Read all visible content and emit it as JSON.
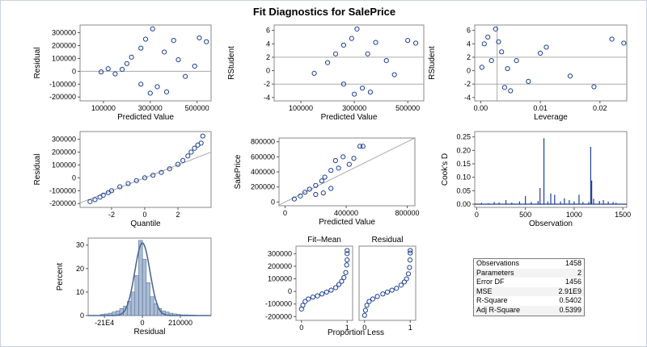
{
  "title": "Fit Diagnostics for SalePrice",
  "colors": {
    "marker": "#1c3f94",
    "bar": "#a9bcd6",
    "axis": "#888888",
    "ref": "#aaaaaa"
  },
  "chart_data": [
    {
      "type": "scatter",
      "title": "",
      "xlabel": "Predicted Value",
      "ylabel": "Residual",
      "xlim": [
        0,
        560000
      ],
      "ylim": [
        -230000,
        360000
      ],
      "xticks": [
        "100000",
        "300000",
        "500000"
      ],
      "xtick_values": [
        100000,
        300000,
        500000
      ],
      "yticks": [
        "300000",
        "200000",
        "100000",
        "0",
        "-100000",
        "-200000"
      ],
      "ytick_values": [
        300000,
        200000,
        100000,
        0,
        -100000,
        -200000
      ],
      "reference_lines": [
        0
      ],
      "points": [
        [
          150000,
          -20000
        ],
        [
          180000,
          15000
        ],
        [
          200000,
          60000
        ],
        [
          220000,
          110000
        ],
        [
          260000,
          180000
        ],
        [
          280000,
          250000
        ],
        [
          310000,
          330000
        ],
        [
          360000,
          150000
        ],
        [
          400000,
          240000
        ],
        [
          420000,
          90000
        ],
        [
          450000,
          -40000
        ],
        [
          490000,
          40000
        ],
        [
          510000,
          260000
        ],
        [
          540000,
          230000
        ],
        [
          330000,
          -120000
        ],
        [
          300000,
          -170000
        ],
        [
          260000,
          -100000
        ],
        [
          370000,
          -160000
        ],
        [
          120000,
          20000
        ],
        [
          90000,
          -5000
        ]
      ]
    },
    {
      "type": "scatter",
      "title": "",
      "xlabel": "Predicted Value",
      "ylabel": "RStudent",
      "xlim": [
        0,
        560000
      ],
      "ylim": [
        -4.5,
        6.8
      ],
      "xticks": [
        "100000",
        "300000",
        "500000"
      ],
      "xtick_values": [
        100000,
        300000,
        500000
      ],
      "yticks": [
        "6",
        "4",
        "2",
        "0",
        "-2",
        "-4"
      ],
      "ytick_values": [
        6,
        4,
        2,
        0,
        -2,
        -4
      ],
      "reference_lines": [
        2,
        -2
      ],
      "points": [
        [
          150000,
          -0.4
        ],
        [
          200000,
          1.2
        ],
        [
          230000,
          2.5
        ],
        [
          260000,
          3.8
        ],
        [
          290000,
          4.8
        ],
        [
          310000,
          6.2
        ],
        [
          350000,
          2.5
        ],
        [
          380000,
          4.2
        ],
        [
          420000,
          1.5
        ],
        [
          450000,
          -0.6
        ],
        [
          500000,
          4.5
        ],
        [
          530000,
          4.1
        ],
        [
          330000,
          -2.6
        ],
        [
          300000,
          -3.5
        ],
        [
          260000,
          -2.0
        ],
        [
          360000,
          -3.2
        ]
      ]
    },
    {
      "type": "scatter",
      "title": "",
      "xlabel": "Leverage",
      "ylabel": "RStudent",
      "xlim": [
        -0.001,
        0.0245
      ],
      "ylim": [
        -4.5,
        6.8
      ],
      "xticks": [
        "0.00",
        "0.01",
        "0.02"
      ],
      "xtick_values": [
        0.0,
        0.01,
        0.02
      ],
      "yticks": [
        "6",
        "4",
        "2",
        "0",
        "-2",
        "-4"
      ],
      "ytick_values": [
        6,
        4,
        2,
        0,
        -2,
        -4
      ],
      "reference_lines_h": [
        2,
        -2
      ],
      "reference_lines_v": [
        0.00275
      ],
      "points": [
        [
          0.0002,
          0.5
        ],
        [
          0.0006,
          4.0
        ],
        [
          0.0012,
          5.0
        ],
        [
          0.0018,
          1.5
        ],
        [
          0.0025,
          6.2
        ],
        [
          0.003,
          4.3
        ],
        [
          0.0035,
          2.8
        ],
        [
          0.004,
          -2.5
        ],
        [
          0.0045,
          0.3
        ],
        [
          0.005,
          -3.0
        ],
        [
          0.006,
          1.5
        ],
        [
          0.008,
          -1.6
        ],
        [
          0.01,
          2.6
        ],
        [
          0.011,
          3.5
        ],
        [
          0.015,
          -0.8
        ],
        [
          0.019,
          -2.4
        ],
        [
          0.022,
          4.7
        ],
        [
          0.024,
          4.1
        ]
      ]
    },
    {
      "type": "scatter",
      "title": "",
      "xlabel": "Quantile",
      "ylabel": "Residual",
      "xlim": [
        -3.9,
        4.0
      ],
      "ylim": [
        -230000,
        360000
      ],
      "xticks": [
        "-2",
        "0",
        "2"
      ],
      "xtick_values": [
        -2,
        0,
        2
      ],
      "yticks": [
        "300000",
        "200000",
        "100000",
        "0",
        "-100000",
        "-200000"
      ],
      "ytick_values": [
        300000,
        200000,
        100000,
        0,
        -100000,
        -200000
      ],
      "reference_line": {
        "slope": 50000,
        "intercept": 0
      },
      "points": [
        [
          -3.3,
          -185000
        ],
        [
          -3.0,
          -170000
        ],
        [
          -2.7,
          -150000
        ],
        [
          -2.5,
          -135000
        ],
        [
          -2.2,
          -115000
        ],
        [
          -2.0,
          -100000
        ],
        [
          -1.5,
          -70000
        ],
        [
          -1.0,
          -45000
        ],
        [
          -0.5,
          -22000
        ],
        [
          0,
          0
        ],
        [
          0.5,
          20000
        ],
        [
          1.0,
          42000
        ],
        [
          1.5,
          70000
        ],
        [
          2.0,
          105000
        ],
        [
          2.3,
          135000
        ],
        [
          2.6,
          170000
        ],
        [
          2.8,
          200000
        ],
        [
          3.0,
          230000
        ],
        [
          3.2,
          255000
        ],
        [
          3.4,
          270000
        ],
        [
          3.5,
          325000
        ]
      ]
    },
    {
      "type": "scatter",
      "title": "",
      "xlabel": "Predicted Value",
      "ylabel": "SalePrice",
      "xlim": [
        -40000,
        850000
      ],
      "ylim": [
        -50000,
        850000
      ],
      "xticks": [
        "0",
        "400000",
        "800000"
      ],
      "xtick_values": [
        0,
        400000,
        800000
      ],
      "yticks": [
        "800000",
        "600000",
        "400000",
        "200000",
        "0"
      ],
      "ytick_values": [
        800000,
        600000,
        400000,
        200000,
        0
      ],
      "reference_line": {
        "slope": 1,
        "intercept": 0
      },
      "points": [
        [
          60000,
          40000
        ],
        [
          100000,
          80000
        ],
        [
          130000,
          130000
        ],
        [
          160000,
          170000
        ],
        [
          200000,
          220000
        ],
        [
          240000,
          280000
        ],
        [
          260000,
          330000
        ],
        [
          300000,
          420000
        ],
        [
          330000,
          550000
        ],
        [
          350000,
          450000
        ],
        [
          380000,
          600000
        ],
        [
          420000,
          500000
        ],
        [
          450000,
          580000
        ],
        [
          490000,
          740000
        ],
        [
          510000,
          740000
        ],
        [
          200000,
          100000
        ],
        [
          250000,
          120000
        ],
        [
          300000,
          180000
        ]
      ]
    },
    {
      "type": "bar",
      "title": "",
      "xlabel": "Observation",
      "ylabel": "Cook's D",
      "xlim": [
        -20,
        1540
      ],
      "ylim": [
        -0.012,
        0.27
      ],
      "xticks": [
        "0",
        "500",
        "1000",
        "1500"
      ],
      "xtick_values": [
        0,
        500,
        1000,
        1500
      ],
      "yticks": [
        "0.25",
        "0.20",
        "0.15",
        "0.10",
        "0.05",
        "0.00"
      ],
      "ytick_values": [
        0.25,
        0.2,
        0.15,
        0.1,
        0.05,
        0.0
      ],
      "needles": [
        [
          50,
          0.005
        ],
        [
          120,
          0.004
        ],
        [
          180,
          0.008
        ],
        [
          230,
          0.006
        ],
        [
          300,
          0.015
        ],
        [
          360,
          0.006
        ],
        [
          440,
          0.01
        ],
        [
          500,
          0.03
        ],
        [
          560,
          0.008
        ],
        [
          630,
          0.012
        ],
        [
          650,
          0.06
        ],
        [
          690,
          0.245
        ],
        [
          730,
          0.01
        ],
        [
          760,
          0.04
        ],
        [
          800,
          0.035
        ],
        [
          860,
          0.01
        ],
        [
          900,
          0.022
        ],
        [
          950,
          0.015
        ],
        [
          1000,
          0.01
        ],
        [
          1050,
          0.035
        ],
        [
          1090,
          0.008
        ],
        [
          1150,
          0.008
        ],
        [
          1170,
          0.213
        ],
        [
          1180,
          0.088
        ],
        [
          1200,
          0.02
        ],
        [
          1260,
          0.012
        ],
        [
          1300,
          0.015
        ],
        [
          1350,
          0.01
        ],
        [
          1400,
          0.008
        ],
        [
          1430,
          0.005
        ]
      ]
    },
    {
      "type": "bar",
      "title": "",
      "xlabel": "Residual",
      "ylabel": "Percent",
      "xlim": [
        -300000,
        380000
      ],
      "ylim": [
        0,
        33
      ],
      "xticks": [
        "-21E4",
        "0",
        "210000"
      ],
      "xtick_values": [
        -210000,
        0,
        210000
      ],
      "yticks": [
        "30",
        "20",
        "10",
        "0"
      ],
      "ytick_values": [
        30,
        20,
        10,
        0
      ],
      "bin_width": 21000,
      "bins": [
        [
          -220000,
          0.5
        ],
        [
          -199000,
          0.7
        ],
        [
          -178000,
          1.0
        ],
        [
          -157000,
          1.5
        ],
        [
          -136000,
          2
        ],
        [
          -115000,
          3
        ],
        [
          -94000,
          4
        ],
        [
          -73000,
          6
        ],
        [
          -52000,
          10
        ],
        [
          -31000,
          17
        ],
        [
          -10000,
          32
        ],
        [
          11000,
          24
        ],
        [
          32000,
          14
        ],
        [
          53000,
          8
        ],
        [
          74000,
          5
        ],
        [
          95000,
          3
        ],
        [
          116000,
          2
        ],
        [
          137000,
          1.5
        ],
        [
          158000,
          1
        ],
        [
          179000,
          0.7
        ],
        [
          200000,
          0.5
        ],
        [
          221000,
          0.3
        ],
        [
          242000,
          0.3
        ],
        [
          263000,
          0.2
        ],
        [
          284000,
          0.2
        ]
      ],
      "density_peak_x": 0,
      "density_peak": 31,
      "density_sd": 42000
    },
    {
      "type": "scatter",
      "title": "Fit–Mean",
      "xlabel": "",
      "ylabel": "",
      "xlim": [
        -0.12,
        1.12
      ],
      "ylim": [
        -230000,
        360000
      ],
      "xticks": [
        "0",
        "1"
      ],
      "xtick_values": [
        0,
        1
      ],
      "yticks": [
        "300000",
        "200000",
        "100000",
        "0",
        "-100000",
        "-200000"
      ],
      "ytick_values": [
        300000,
        200000,
        100000,
        0,
        -100000,
        -200000
      ],
      "points": [
        [
          0.0,
          -140000
        ],
        [
          0.03,
          -110000
        ],
        [
          0.08,
          -80000
        ],
        [
          0.15,
          -60000
        ],
        [
          0.25,
          -45000
        ],
        [
          0.35,
          -35000
        ],
        [
          0.45,
          -20000
        ],
        [
          0.55,
          -5000
        ],
        [
          0.65,
          10000
        ],
        [
          0.75,
          30000
        ],
        [
          0.82,
          55000
        ],
        [
          0.88,
          80000
        ],
        [
          0.93,
          110000
        ],
        [
          0.97,
          150000
        ],
        [
          0.99,
          210000
        ],
        [
          1.0,
          250000
        ],
        [
          1.0,
          300000
        ],
        [
          1.0,
          325000
        ]
      ]
    },
    {
      "type": "scatter",
      "title": "Residual",
      "xlabel": "",
      "ylabel": "",
      "xlim": [
        -0.12,
        1.12
      ],
      "ylim": [
        -230000,
        360000
      ],
      "xticks": [
        "0",
        "1"
      ],
      "xtick_values": [
        0,
        1
      ],
      "yticks": [],
      "ytick_values": [],
      "points": [
        [
          0.0,
          -190000
        ],
        [
          0.02,
          -150000
        ],
        [
          0.05,
          -110000
        ],
        [
          0.1,
          -80000
        ],
        [
          0.18,
          -60000
        ],
        [
          0.28,
          -40000
        ],
        [
          0.4,
          -20000
        ],
        [
          0.5,
          -5000
        ],
        [
          0.6,
          10000
        ],
        [
          0.7,
          25000
        ],
        [
          0.8,
          50000
        ],
        [
          0.87,
          75000
        ],
        [
          0.92,
          100000
        ],
        [
          0.96,
          140000
        ],
        [
          0.985,
          190000
        ],
        [
          0.995,
          250000
        ],
        [
          1.0,
          305000
        ],
        [
          1.0,
          325000
        ]
      ]
    }
  ],
  "shared_xlabel_fitmean": "Proportion Less",
  "stats": [
    {
      "label": "Observations",
      "value": "1458"
    },
    {
      "label": "Parameters",
      "value": "2"
    },
    {
      "label": "Error DF",
      "value": "1456"
    },
    {
      "label": "MSE",
      "value": "2.91E9"
    },
    {
      "label": "R-Square",
      "value": "0.5402"
    },
    {
      "label": "Adj R-Square",
      "value": "0.5399"
    }
  ]
}
